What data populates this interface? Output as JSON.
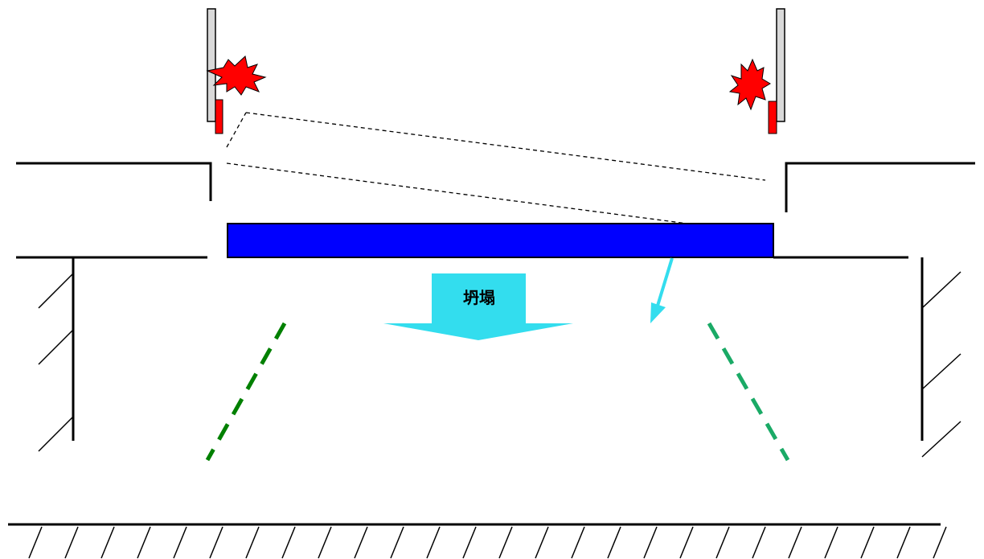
{
  "diagram": {
    "collapse_label": "坍塌",
    "colors": {
      "slab": "#0000ff",
      "collapse_arrow": "#33ddee",
      "shore_left": "#008000",
      "shore_right": "#1aaa66",
      "explosion": "#ff0000",
      "support_post": "#d9d9d9",
      "line": "#000000"
    },
    "icons": [
      "explosion-icon",
      "support-post-icon",
      "collapse-arrow-icon",
      "tilt-arrow-icon"
    ]
  }
}
